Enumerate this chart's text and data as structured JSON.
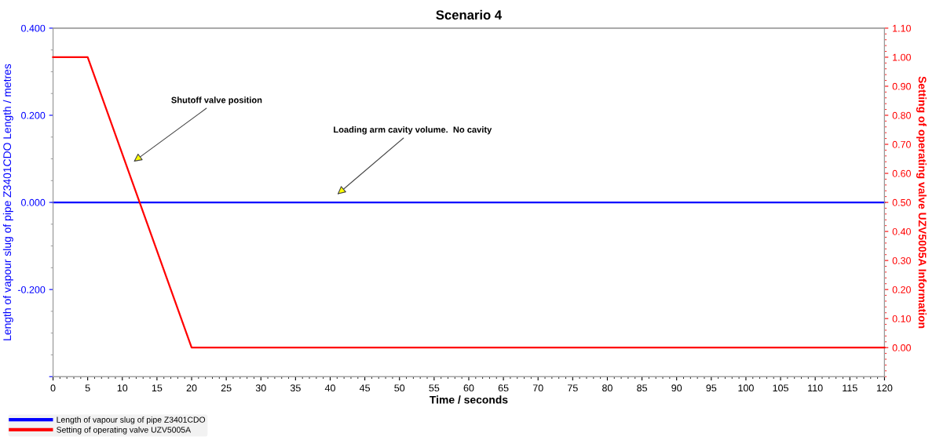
{
  "chart_data": {
    "type": "line",
    "title": "Scenario 4",
    "xlabel": "Time / seconds",
    "ylabel": "Length of vapour slug of pipe Z3401CDO Length / metres",
    "y2label": "Setting of operating valve UZV5005A Information",
    "series": [
      {
        "name": "Length of vapour slug of pipe Z3401CDO",
        "color": "#0000ff",
        "x": [
          0,
          120
        ],
        "values": [
          0.0,
          0.0
        ]
      },
      {
        "name": "Setting of operating valve UZV5005A",
        "color": "#ff0000",
        "axis": "y2",
        "x": [
          0,
          5,
          20,
          120
        ],
        "values": [
          1.0,
          1.0,
          0.0,
          0.0
        ]
      }
    ],
    "annotations": [
      "Shutoff valve position",
      "Loading arm cavity volume.  No cavity"
    ],
    "xlim": [
      0,
      120
    ],
    "xticks": [
      0,
      5,
      10,
      15,
      20,
      25,
      30,
      35,
      40,
      45,
      50,
      55,
      60,
      65,
      70,
      75,
      80,
      85,
      90,
      95,
      100,
      105,
      110,
      115,
      120
    ],
    "ylim": [
      -0.4,
      0.4
    ],
    "yticks": [
      {
        "value": -0.4,
        "label": null
      },
      {
        "value": -0.2,
        "label": "-0.200"
      },
      {
        "value": 0,
        "label": "0.000"
      },
      {
        "value": 0.2,
        "label": "0.200"
      },
      {
        "value": 0.4,
        "label": "0.400"
      }
    ],
    "y2lim": [
      -0.1,
      1.1
    ],
    "y2ticks": [
      {
        "value": 0,
        "label": "0.00"
      },
      {
        "value": 0.1,
        "label": "0.10"
      },
      {
        "value": 0.2,
        "label": "0.20"
      },
      {
        "value": 0.3,
        "label": "0.30"
      },
      {
        "value": 0.4,
        "label": "0.40"
      },
      {
        "value": 0.5,
        "label": "0.50"
      },
      {
        "value": 0.6,
        "label": "0.60"
      },
      {
        "value": 0.7,
        "label": "0.70"
      },
      {
        "value": 0.8,
        "label": "0.80"
      },
      {
        "value": 0.9,
        "label": "0.90"
      },
      {
        "value": 1.0,
        "label": "1.00"
      },
      {
        "value": 1.1,
        "label": "1.10"
      }
    ],
    "grid": false,
    "legend": "bottom",
    "marker": "none",
    "line_style": "solid"
  }
}
